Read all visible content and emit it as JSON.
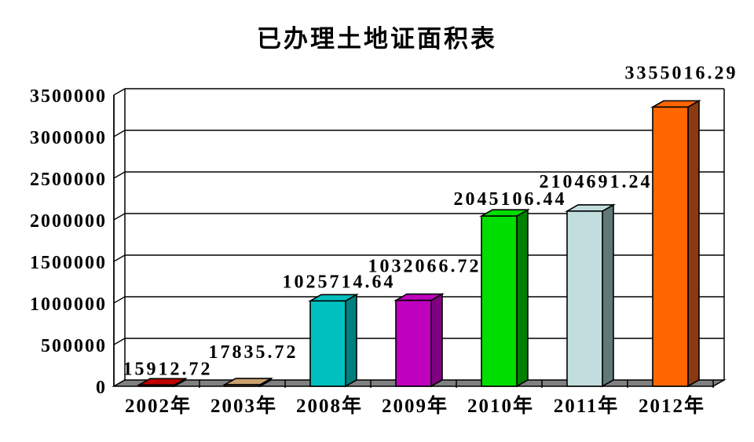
{
  "chart_data": {
    "type": "bar",
    "style": "3d-bar",
    "title": "已办理土地证面积表",
    "categories": [
      "2002年",
      "2003年",
      "2008年",
      "2009年",
      "2010年",
      "2011年",
      "2012年"
    ],
    "values": [
      15912.72,
      17835.72,
      1025714.64,
      1032066.72,
      2045106.44,
      2104691.24,
      3355016.29
    ],
    "value_labels": [
      "15912.72",
      "17835.72",
      "1025714.64",
      "1032066.72",
      "2045106.44",
      "2104691.24",
      "3355016.29"
    ],
    "xlabel": "",
    "ylabel": "",
    "ylim": [
      0,
      3500000
    ],
    "y_tick_interval": 500000,
    "y_tick_labels": [
      "0",
      "500000",
      "1000000",
      "1500000",
      "2000000",
      "2500000",
      "3000000",
      "3500000"
    ],
    "grid": true,
    "legend": false,
    "bar_colors": [
      {
        "front": "#c00000",
        "side": "#7a0000"
      },
      {
        "front": "#c9a06e",
        "side": "#8a6a44"
      },
      {
        "front": "#00bfbf",
        "side": "#007f7f"
      },
      {
        "front": "#bf00bf",
        "side": "#7f007f"
      },
      {
        "front": "#00dd00",
        "side": "#008000"
      },
      {
        "front": "#c2dddd",
        "side": "#617878"
      },
      {
        "front": "#ff6600",
        "side": "#8a3a0e"
      }
    ],
    "floor_color": "#808080",
    "wall_color": "#ffffff",
    "axis_color": "#000000",
    "text_color": "#000000",
    "background_color": "#ffffff"
  }
}
